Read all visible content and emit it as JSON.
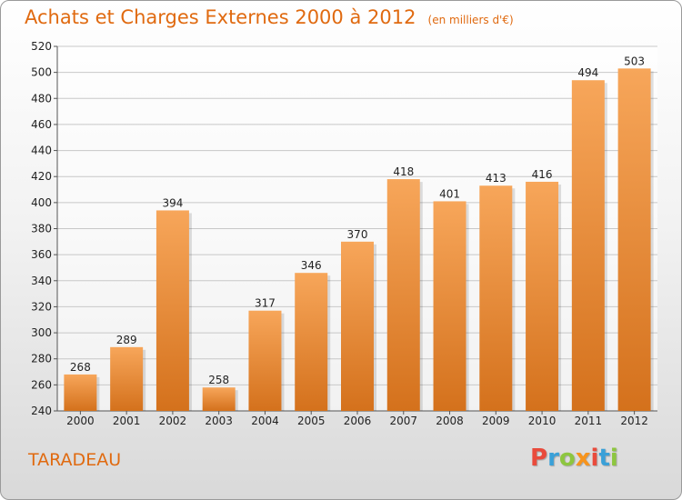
{
  "header": {
    "title": "Achats et Charges Externes 2000 à 2012",
    "subtitle": "(en milliers d'€)"
  },
  "footer": {
    "commune": "TARADEAU",
    "logo_text": "Proxiti"
  },
  "colors": {
    "accent": "#e06a10",
    "bar_top": "#f7a65a",
    "bar_bottom": "#d4711c",
    "logo": [
      "#e94b3c",
      "#3aa0d8",
      "#8dc63f",
      "#f7941d",
      "#e94b3c",
      "#3aa0d8",
      "#8dc63f"
    ]
  },
  "chart_data": {
    "type": "bar",
    "title": "Achats et Charges Externes 2000 à 2012",
    "subtitle": "(en milliers d'€)",
    "categories": [
      "2000",
      "2001",
      "2002",
      "2003",
      "2004",
      "2005",
      "2006",
      "2007",
      "2008",
      "2009",
      "2010",
      "2011",
      "2012"
    ],
    "values": [
      268,
      289,
      394,
      258,
      317,
      346,
      370,
      418,
      401,
      413,
      416,
      494,
      503
    ],
    "ylim": [
      240,
      520
    ],
    "yticks": [
      240,
      260,
      280,
      300,
      320,
      340,
      360,
      380,
      400,
      420,
      440,
      460,
      480,
      500,
      520
    ],
    "grid": true,
    "legend": "none",
    "data_labels": true
  }
}
